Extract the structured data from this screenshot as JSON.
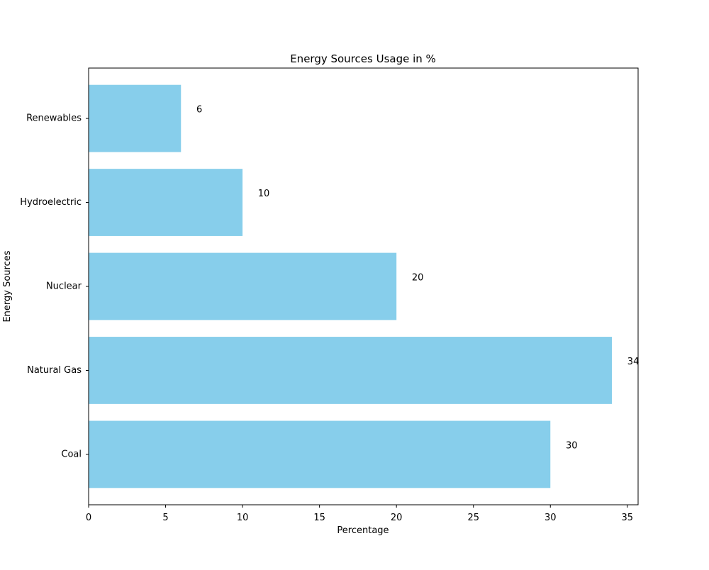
{
  "chart_data": {
    "type": "bar",
    "orientation": "horizontal",
    "title": "Energy Sources Usage in %",
    "xlabel": "Percentage",
    "ylabel": "Energy Sources",
    "categories": [
      "Coal",
      "Natural Gas",
      "Nuclear",
      "Hydroelectric",
      "Renewables"
    ],
    "values": [
      30,
      34,
      20,
      10,
      6
    ],
    "data_labels": [
      "30",
      "34",
      "20",
      "10",
      "6"
    ],
    "xlim": [
      0,
      35.7
    ],
    "xticks": [
      0,
      5,
      10,
      15,
      20,
      25,
      30,
      35
    ],
    "xtick_labels": [
      "0",
      "5",
      "10",
      "15",
      "20",
      "25",
      "30",
      "35"
    ],
    "bar_color": "#87ceeb",
    "grid": false,
    "legend": "none"
  }
}
